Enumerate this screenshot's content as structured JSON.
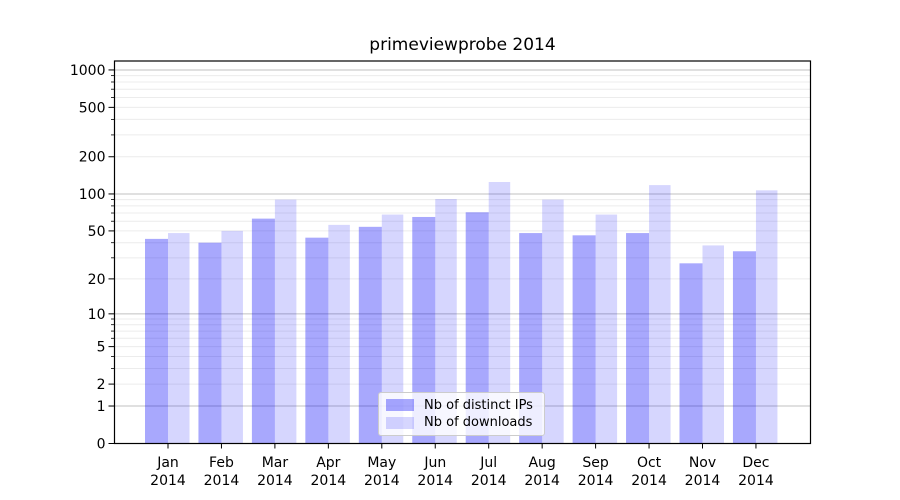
{
  "chart_data": {
    "type": "bar",
    "title": "primeviewprobe 2014",
    "xlabel": "",
    "ylabel": "",
    "y_scale": "log(1+y)",
    "ylim": [
      0,
      1180
    ],
    "y_ticks": [
      0,
      1,
      2,
      5,
      10,
      20,
      50,
      100,
      200,
      500,
      1000
    ],
    "grid": true,
    "legend_position": "bottom-center",
    "categories": [
      "Jan 2014",
      "Feb 2014",
      "Mar 2014",
      "Apr 2014",
      "May 2014",
      "Jun 2014",
      "Jul 2014",
      "Aug 2014",
      "Sep 2014",
      "Oct 2014",
      "Nov 2014",
      "Dec 2014"
    ],
    "series": [
      {
        "name": "Nb of distinct IPs",
        "color": "rgba(0,0,250,0.34)",
        "values": [
          43,
          40,
          63,
          44,
          54,
          65,
          71,
          48,
          46,
          48,
          27,
          34
        ]
      },
      {
        "name": "Nb of downloads",
        "color": "rgba(0,0,250,0.16)",
        "values": [
          48,
          50,
          90,
          56,
          68,
          91,
          125,
          90,
          68,
          118,
          38,
          107
        ]
      }
    ],
    "colors": {
      "grid_major": "#c0c0c0",
      "grid_minor": "#ececec",
      "axis": "#000000",
      "text": "#000000",
      "legend_border": "#cccccc",
      "legend_bg": "rgba(255,255,255,0.8)"
    }
  }
}
